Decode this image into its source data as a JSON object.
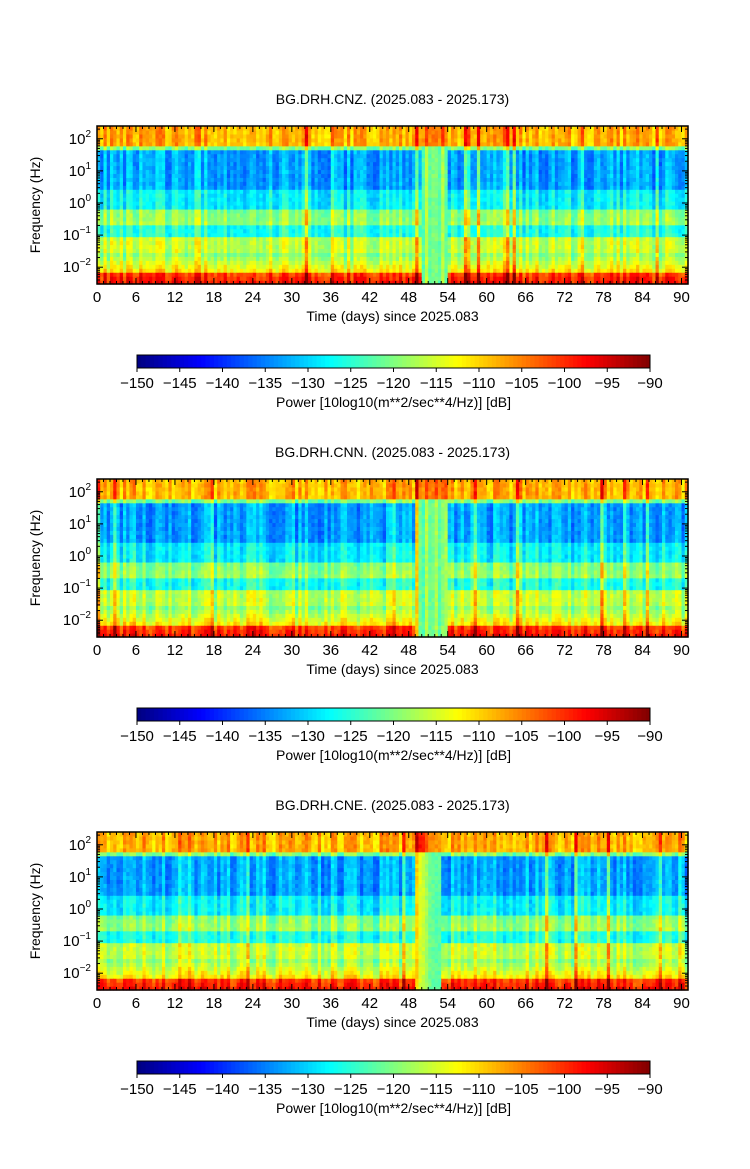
{
  "chart_data": [
    {
      "type": "heatmap",
      "title": "BG.DRH.CNZ. (2025.083 - 2025.173)",
      "xlabel": "Time (days) since 2025.083",
      "ylabel": "Frequency (Hz)",
      "xlim": [
        0,
        91
      ],
      "ylim": [
        0.003,
        250
      ],
      "yscale": "log",
      "xticks": [
        0,
        6,
        12,
        18,
        24,
        30,
        36,
        42,
        48,
        54,
        60,
        66,
        72,
        78,
        84,
        90
      ],
      "yticks": [
        {
          "mant": "10",
          "exp": "2",
          "value": 100
        },
        {
          "mant": "10",
          "exp": "1",
          "value": 10
        },
        {
          "mant": "10",
          "exp": "0",
          "value": 1
        },
        {
          "mant": "10",
          "exp": "−1",
          "value": 0.1
        },
        {
          "mant": "10",
          "exp": "−2",
          "value": 0.01
        }
      ],
      "gap": [
        50,
        54
      ],
      "colorbar": {
        "label": "Power [10log10(m**2/sec**4/Hz)] [dB]",
        "range": [
          -150,
          -90
        ],
        "ticks": [
          "−150",
          "−145",
          "−140",
          "−135",
          "−130",
          "−125",
          "−120",
          "−115",
          "−110",
          "−105",
          "−100",
          "−95",
          "−90"
        ],
        "colormap": "jet"
      }
    },
    {
      "type": "heatmap",
      "title": "BG.DRH.CNN. (2025.083 - 2025.173)",
      "xlabel": "Time (days) since 2025.083",
      "ylabel": "Frequency (Hz)",
      "xlim": [
        0,
        91
      ],
      "ylim": [
        0.003,
        250
      ],
      "yscale": "log",
      "xticks": [
        0,
        6,
        12,
        18,
        24,
        30,
        36,
        42,
        48,
        54,
        60,
        66,
        72,
        78,
        84,
        90
      ],
      "yticks": [
        {
          "mant": "10",
          "exp": "2",
          "value": 100
        },
        {
          "mant": "10",
          "exp": "1",
          "value": 10
        },
        {
          "mant": "10",
          "exp": "0",
          "value": 1
        },
        {
          "mant": "10",
          "exp": "−1",
          "value": 0.1
        },
        {
          "mant": "10",
          "exp": "−2",
          "value": 0.01
        }
      ],
      "gap": [
        49,
        54
      ],
      "colorbar": {
        "label": "Power [10log10(m**2/sec**4/Hz)] [dB]",
        "range": [
          -150,
          -90
        ],
        "ticks": [
          "−150",
          "−145",
          "−140",
          "−135",
          "−130",
          "−125",
          "−120",
          "−115",
          "−110",
          "−105",
          "−100",
          "−95",
          "−90"
        ],
        "colormap": "jet"
      }
    },
    {
      "type": "heatmap",
      "title": "BG.DRH.CNE. (2025.083 - 2025.173)",
      "xlabel": "Time (days) since 2025.083",
      "ylabel": "Frequency (Hz)",
      "xlim": [
        0,
        91
      ],
      "ylim": [
        0.003,
        250
      ],
      "yscale": "log",
      "xticks": [
        0,
        6,
        12,
        18,
        24,
        30,
        36,
        42,
        48,
        54,
        60,
        66,
        72,
        78,
        84,
        90
      ],
      "yticks": [
        {
          "mant": "10",
          "exp": "2",
          "value": 100
        },
        {
          "mant": "10",
          "exp": "1",
          "value": 10
        },
        {
          "mant": "10",
          "exp": "0",
          "value": 1
        },
        {
          "mant": "10",
          "exp": "−1",
          "value": 0.1
        },
        {
          "mant": "10",
          "exp": "−2",
          "value": 0.01
        }
      ],
      "gap": [
        49,
        53
      ],
      "colorbar": {
        "label": "Power [10log10(m**2/sec**4/Hz)] [dB]",
        "range": [
          -150,
          -90
        ],
        "ticks": [
          "−150",
          "−145",
          "−140",
          "−135",
          "−130",
          "−125",
          "−120",
          "−115",
          "−110",
          "−105",
          "−100",
          "−95",
          "−90"
        ],
        "colormap": "jet"
      }
    }
  ]
}
